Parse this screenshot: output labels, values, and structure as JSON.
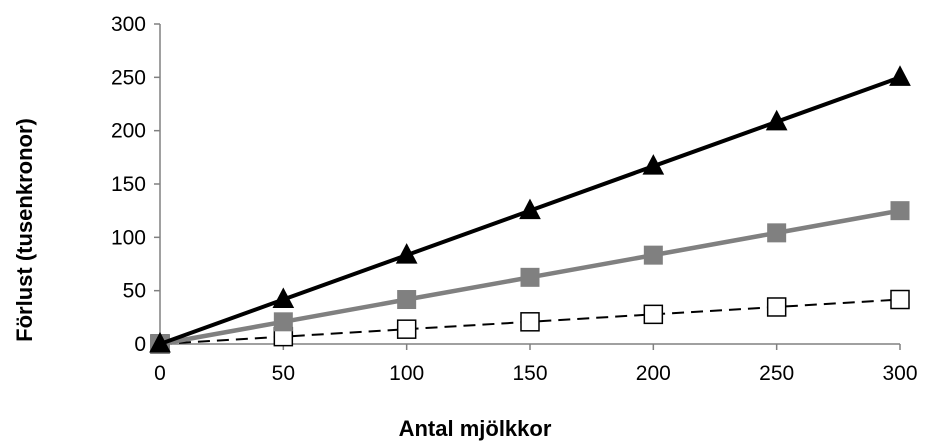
{
  "chart_data": {
    "type": "line",
    "title": "",
    "xlabel": "Antal mjölkkor",
    "ylabel": "Förlust (tusenkronor)",
    "xlim": [
      0,
      300
    ],
    "ylim": [
      0,
      300
    ],
    "x_ticks": [
      0,
      50,
      100,
      150,
      200,
      250,
      300
    ],
    "y_ticks": [
      0,
      50,
      100,
      150,
      200,
      250,
      300
    ],
    "grid": false,
    "legend": "none",
    "x": [
      0,
      50,
      100,
      150,
      200,
      250,
      300
    ],
    "series": [
      {
        "values": [
          0,
          41.7,
          83.3,
          125,
          166.7,
          208.3,
          250
        ],
        "color": "#000000",
        "marker": "triangle-filled",
        "line_style": "solid"
      },
      {
        "values": [
          0,
          20.8,
          41.7,
          62.5,
          83.3,
          104.2,
          125
        ],
        "color": "#808080",
        "marker": "square-filled",
        "line_style": "solid"
      },
      {
        "values": [
          0,
          6.9,
          13.9,
          20.8,
          27.8,
          34.7,
          41.7
        ],
        "color": "#000000",
        "marker": "square-open",
        "line_style": "dashed"
      }
    ]
  }
}
